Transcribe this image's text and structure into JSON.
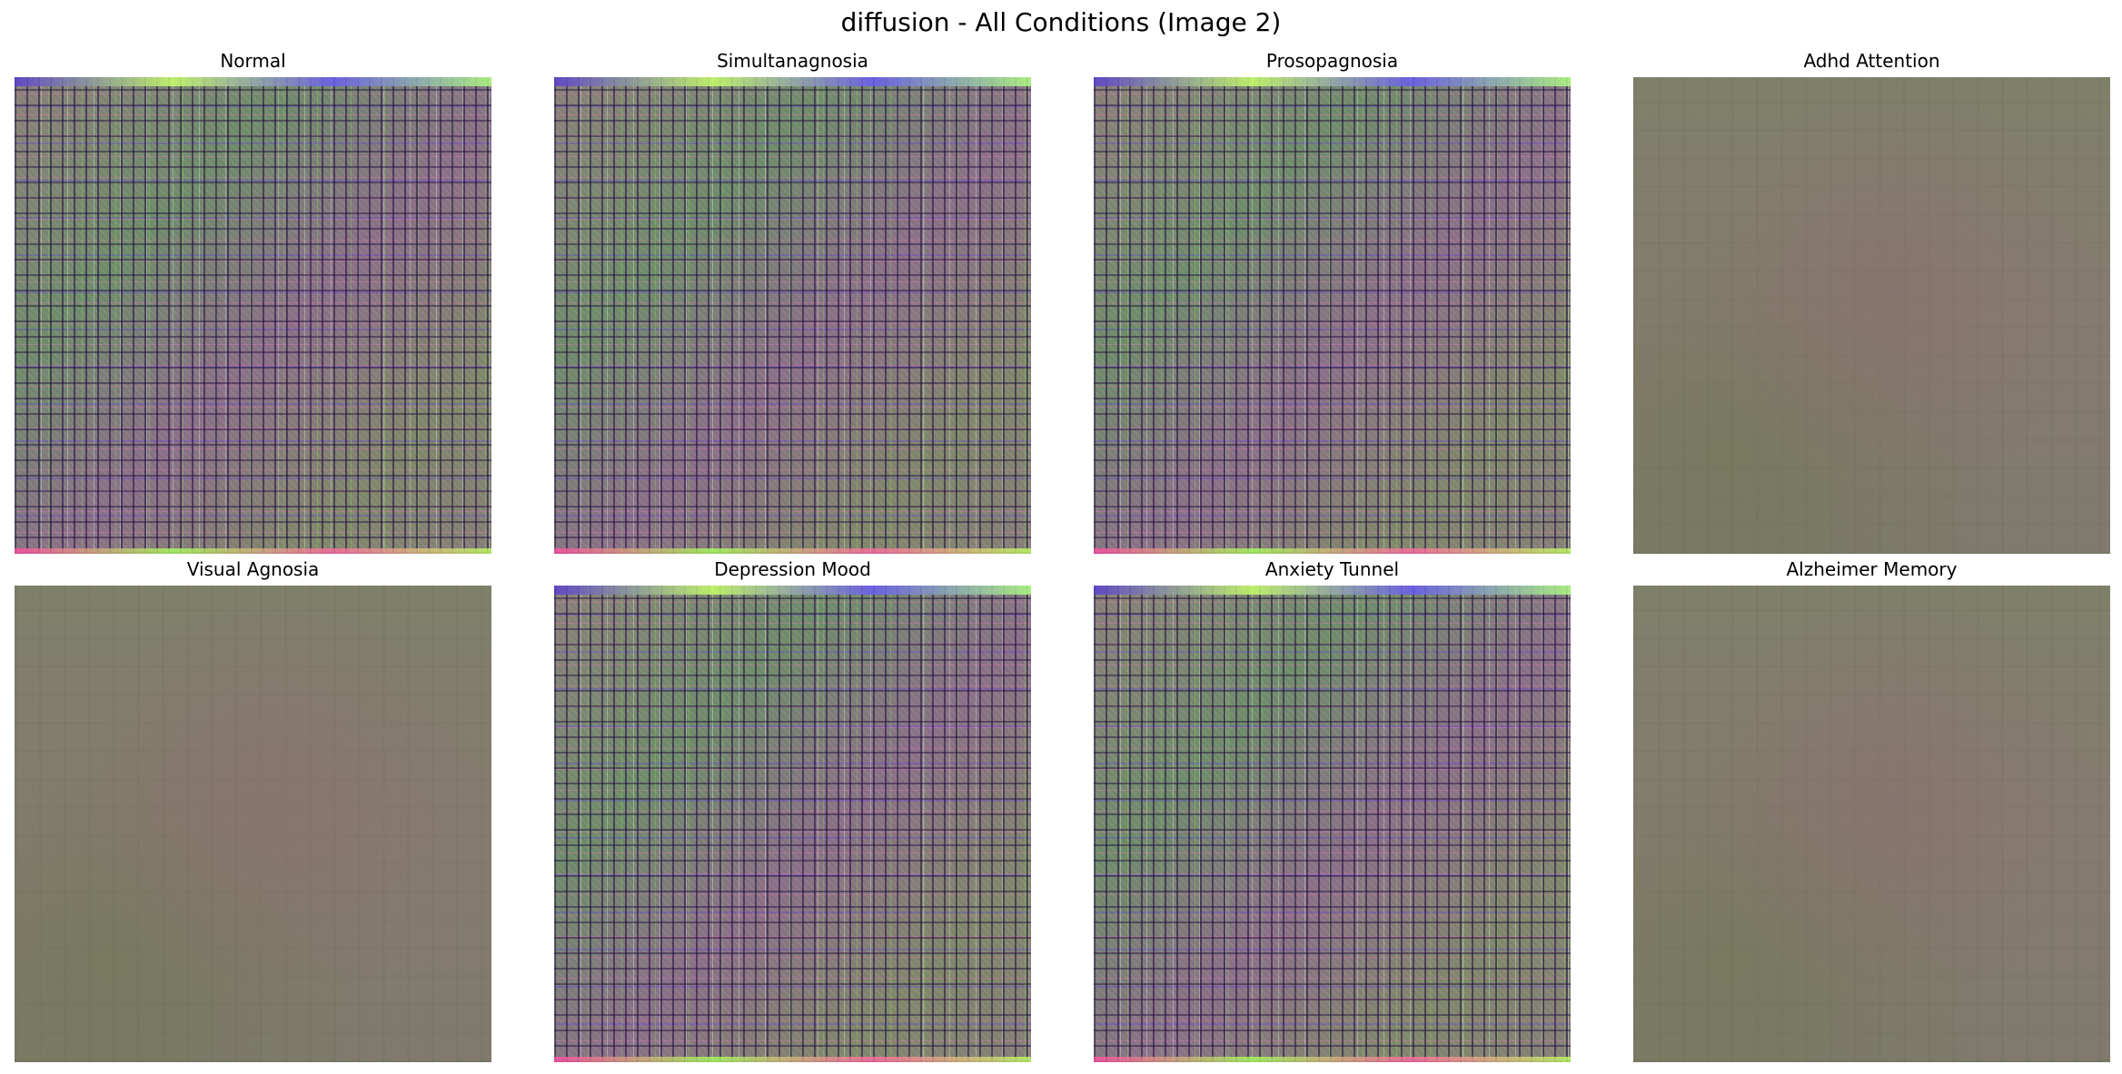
{
  "figure": {
    "title": "diffusion - All Conditions (Image 2)"
  },
  "panels": [
    {
      "title": "Normal",
      "style": "busy"
    },
    {
      "title": "Simultanagnosia",
      "style": "busy"
    },
    {
      "title": "Prosopagnosia",
      "style": "busy"
    },
    {
      "title": "Adhd Attention",
      "style": "blur"
    },
    {
      "title": "Visual Agnosia",
      "style": "blur"
    },
    {
      "title": "Depression Mood",
      "style": "busy"
    },
    {
      "title": "Anxiety Tunnel",
      "style": "busy"
    },
    {
      "title": "Alzheimer Memory",
      "style": "blur"
    }
  ]
}
